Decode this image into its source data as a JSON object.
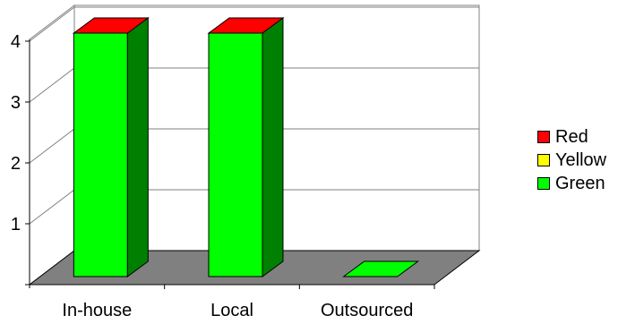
{
  "chart_data": {
    "type": "bar",
    "stacked": true,
    "three_d": true,
    "categories": [
      "In-house",
      "Local",
      "Outsourced"
    ],
    "series": [
      {
        "name": "Green",
        "values": [
          4,
          4,
          0
        ],
        "color": "#00ff00",
        "side": "#008000"
      },
      {
        "name": "Yellow",
        "values": [
          0,
          0,
          0
        ],
        "color": "#ffff00",
        "side": "#999900"
      },
      {
        "name": "Red",
        "values": [
          0,
          0,
          0
        ],
        "color": "#ff0000",
        "side": "#990000"
      }
    ],
    "ylim": [
      0,
      4
    ],
    "yticks": [
      1,
      2,
      3,
      4
    ],
    "grid": true,
    "legend_position": "right",
    "legend_order": [
      "Red",
      "Yellow",
      "Green"
    ]
  }
}
